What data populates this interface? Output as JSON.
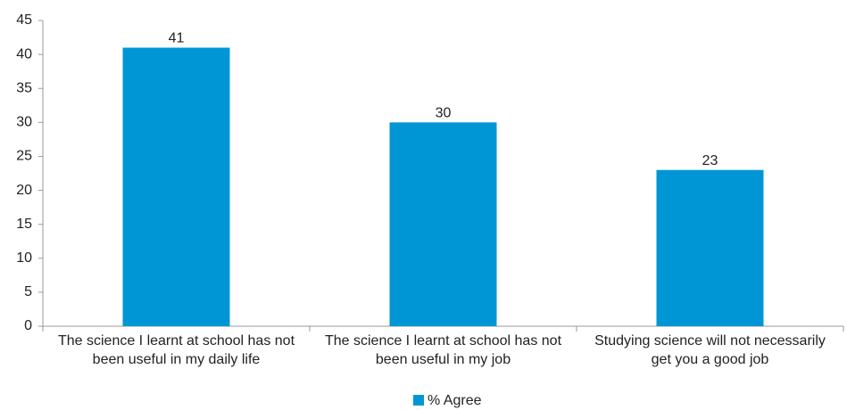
{
  "chart_data": {
    "type": "bar",
    "categories": [
      "The science I learnt at school has not been useful in my daily life",
      "The science I learnt at school has not been useful in my job",
      "Studying science will not necessarily get you a good job"
    ],
    "series": [
      {
        "name": "% Agree",
        "color": "#0096d6",
        "values": [
          41,
          30,
          23
        ]
      }
    ],
    "ylim": [
      0,
      45
    ],
    "yticks": [
      0,
      5,
      10,
      15,
      20,
      25,
      30,
      35,
      40,
      45
    ],
    "grid": false,
    "legend": "bottom"
  }
}
